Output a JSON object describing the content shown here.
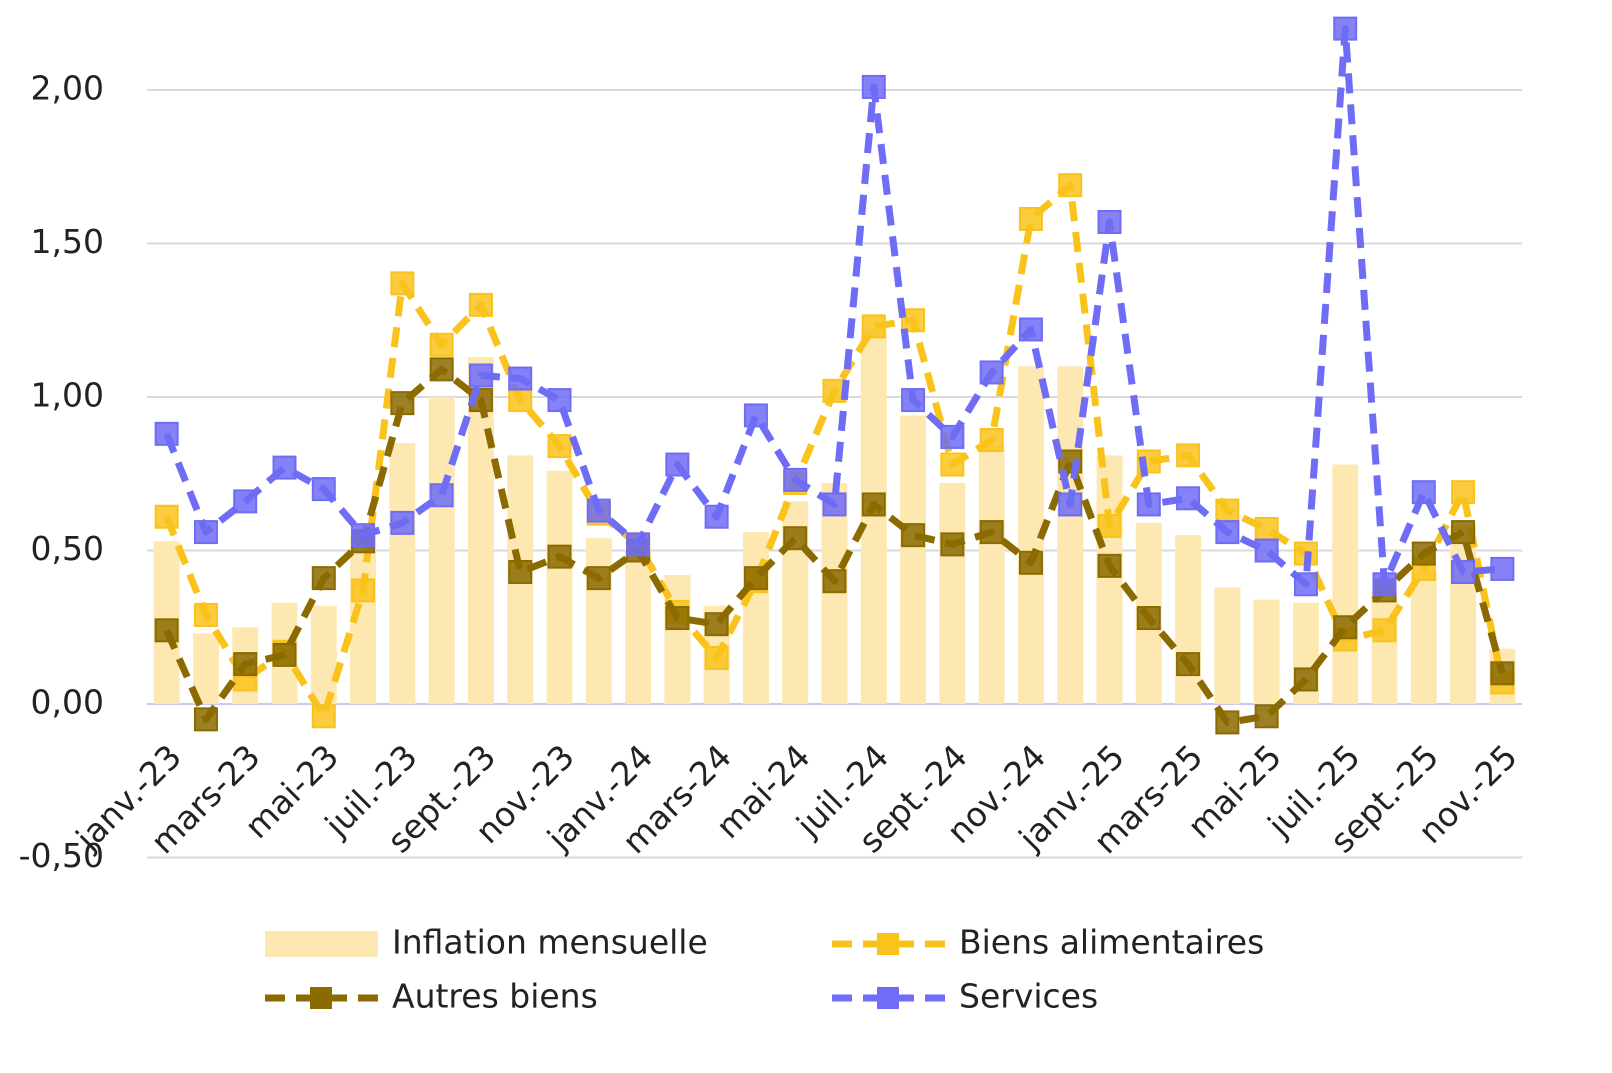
{
  "chart_data": {
    "type": "combo",
    "categories": [
      "janv.-23",
      null,
      "mars-23",
      null,
      "mai-23",
      null,
      "juil.-23",
      null,
      "sept.-23",
      null,
      "nov.-23",
      null,
      "janv.-24",
      null,
      "mars-24",
      null,
      "mai-24",
      null,
      "juil.-24",
      null,
      "sept.-24",
      null,
      "nov.-24",
      null,
      "janv.-25",
      null,
      "mars-25",
      null,
      "mai-25",
      null,
      "juil.-25",
      null,
      "sept.-25",
      null,
      "nov.-25"
    ],
    "series": [
      {
        "name": "Inflation mensuelle",
        "type": "bar",
        "color": "#fde8b2",
        "values": [
          0.53,
          0.23,
          0.25,
          0.33,
          0.32,
          0.55,
          0.85,
          1.0,
          1.13,
          0.81,
          0.76,
          0.54,
          0.5,
          0.42,
          0.32,
          0.56,
          0.66,
          0.72,
          1.22,
          0.94,
          0.72,
          0.84,
          1.1,
          1.1,
          0.81,
          0.59,
          0.55,
          0.38,
          0.34,
          0.33,
          0.78,
          0.37,
          0.43,
          0.58,
          0.18
        ]
      },
      {
        "name": "Biens alimentaires",
        "type": "line",
        "color": "#f9c31c",
        "values": [
          0.61,
          0.29,
          0.08,
          0.17,
          -0.04,
          0.37,
          1.37,
          1.17,
          1.3,
          0.99,
          0.84,
          0.62,
          0.52,
          0.3,
          0.15,
          0.4,
          0.72,
          1.02,
          1.23,
          1.25,
          0.78,
          0.86,
          1.58,
          1.69,
          0.58,
          0.79,
          0.81,
          0.63,
          0.57,
          0.49,
          0.21,
          0.24,
          0.44,
          0.69,
          0.07
        ]
      },
      {
        "name": "Autres biens",
        "type": "line",
        "color": "#8b6a00",
        "values": [
          0.24,
          -0.05,
          0.13,
          0.16,
          0.41,
          0.53,
          0.98,
          1.09,
          0.99,
          0.43,
          0.48,
          0.41,
          0.5,
          0.28,
          0.26,
          0.41,
          0.54,
          0.4,
          0.65,
          0.55,
          0.52,
          0.56,
          0.46,
          0.79,
          0.45,
          0.28,
          0.13,
          -0.06,
          -0.04,
          0.08,
          0.25,
          0.37,
          0.49,
          0.56,
          0.1
        ]
      },
      {
        "name": "Services",
        "type": "line",
        "color": "#6f6cf5",
        "values": [
          0.88,
          0.56,
          0.66,
          0.77,
          0.7,
          0.55,
          0.59,
          0.68,
          1.07,
          1.06,
          0.99,
          0.63,
          0.52,
          0.78,
          0.61,
          0.94,
          0.73,
          0.65,
          2.01,
          0.99,
          0.87,
          1.08,
          1.22,
          0.65,
          1.57,
          0.65,
          0.67,
          0.56,
          0.5,
          0.39,
          2.2,
          0.39,
          0.69,
          0.43,
          0.44
        ]
      }
    ],
    "ylim": [
      -0.5,
      2.3
    ],
    "yticks": [
      {
        "value": -0.5,
        "label": "-0,50"
      },
      {
        "value": 0,
        "label": "0,00"
      },
      {
        "value": 0.5,
        "label": "0,50"
      },
      {
        "value": 1,
        "label": "1,00"
      },
      {
        "value": 1.5,
        "label": "1,50"
      },
      {
        "value": 2,
        "label": "2,00"
      }
    ],
    "grid": true,
    "legend": "bottom"
  }
}
